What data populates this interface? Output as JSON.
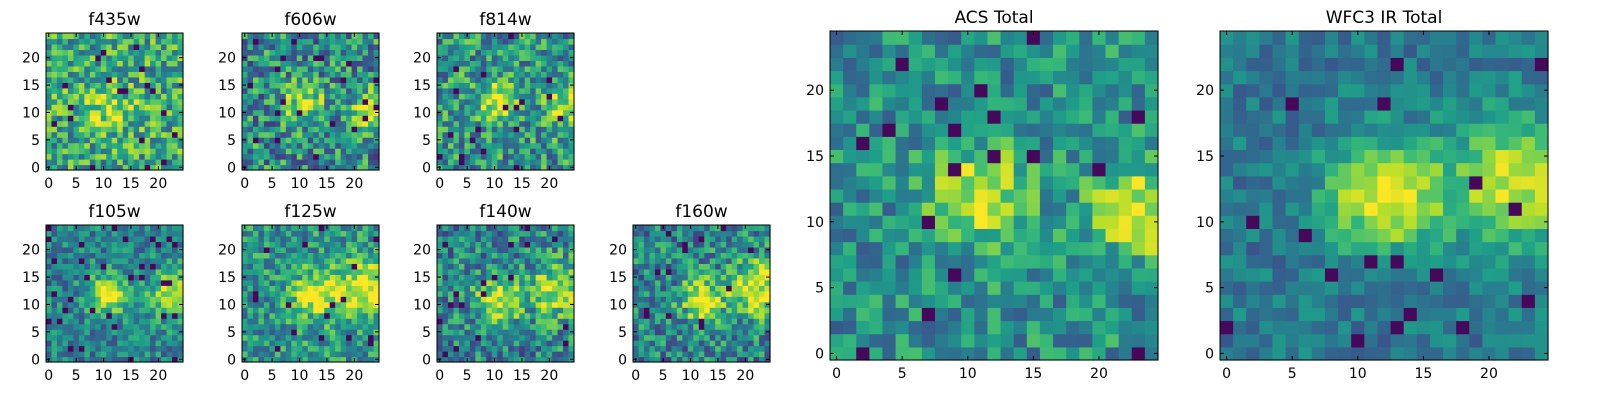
{
  "chart_data": [
    {
      "type": "heatmap",
      "title": "f435w",
      "xticks": [
        "0",
        "5",
        "10",
        "15",
        "20"
      ],
      "yticks": [
        "0",
        "5",
        "10",
        "15",
        "20"
      ],
      "grid": false,
      "colormap": "viridis",
      "pixels": [
        25,
        25
      ]
    },
    {
      "type": "heatmap",
      "title": "f606w",
      "xticks": [
        "0",
        "5",
        "10",
        "15",
        "20"
      ],
      "yticks": [
        "0",
        "5",
        "10",
        "15",
        "20"
      ],
      "grid": false,
      "colormap": "viridis",
      "pixels": [
        25,
        25
      ]
    },
    {
      "type": "heatmap",
      "title": "f814w",
      "xticks": [
        "0",
        "5",
        "10",
        "15",
        "20"
      ],
      "yticks": [
        "0",
        "5",
        "10",
        "15",
        "20"
      ],
      "grid": false,
      "colormap": "viridis",
      "pixels": [
        25,
        25
      ]
    },
    {
      "type": "heatmap",
      "title": "f105w",
      "xticks": [
        "0",
        "5",
        "10",
        "15",
        "20"
      ],
      "yticks": [
        "0",
        "5",
        "10",
        "15",
        "20"
      ],
      "grid": false,
      "colormap": "viridis",
      "pixels": [
        25,
        25
      ]
    },
    {
      "type": "heatmap",
      "title": "f125w",
      "xticks": [
        "0",
        "5",
        "10",
        "15",
        "20"
      ],
      "yticks": [
        "0",
        "5",
        "10",
        "15",
        "20"
      ],
      "grid": false,
      "colormap": "viridis",
      "pixels": [
        25,
        25
      ]
    },
    {
      "type": "heatmap",
      "title": "f140w",
      "xticks": [
        "0",
        "5",
        "10",
        "15",
        "20"
      ],
      "yticks": [
        "0",
        "5",
        "10",
        "15",
        "20"
      ],
      "grid": false,
      "colormap": "viridis",
      "pixels": [
        25,
        25
      ]
    },
    {
      "type": "heatmap",
      "title": "f160w",
      "xticks": [
        "0",
        "5",
        "10",
        "15",
        "20"
      ],
      "yticks": [
        "0",
        "5",
        "10",
        "15",
        "20"
      ],
      "grid": false,
      "colormap": "viridis",
      "pixels": [
        25,
        25
      ]
    },
    {
      "type": "heatmap",
      "title": "ACS Total",
      "xticks": [
        "0",
        "5",
        "10",
        "15",
        "20"
      ],
      "yticks": [
        "0",
        "5",
        "10",
        "15",
        "20"
      ],
      "grid": false,
      "colormap": "viridis",
      "pixels": [
        25,
        25
      ]
    },
    {
      "type": "heatmap",
      "title": "WFC3 IR Total",
      "xticks": [
        "0",
        "5",
        "10",
        "15",
        "20"
      ],
      "yticks": [
        "0",
        "5",
        "10",
        "15",
        "20"
      ],
      "grid": false,
      "colormap": "viridis",
      "pixels": [
        25,
        25
      ]
    }
  ]
}
